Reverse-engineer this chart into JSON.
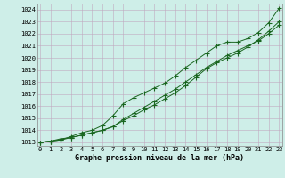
{
  "xlabel": "Graphe pression niveau de la mer (hPa)",
  "bg_color": "#ceeee8",
  "grid_color": "#c0a8c0",
  "line_color": "#1a6620",
  "xlim": [
    -0.3,
    23.3
  ],
  "ylim": [
    1012.7,
    1024.5
  ],
  "yticks": [
    1013,
    1014,
    1015,
    1016,
    1017,
    1018,
    1019,
    1020,
    1021,
    1022,
    1023,
    1024
  ],
  "xticks": [
    0,
    1,
    2,
    3,
    4,
    5,
    6,
    7,
    8,
    9,
    10,
    11,
    12,
    13,
    14,
    15,
    16,
    17,
    18,
    19,
    20,
    21,
    22,
    23
  ],
  "series1_x": [
    0,
    1,
    2,
    3,
    4,
    5,
    6,
    7,
    8,
    9,
    10,
    11,
    12,
    13,
    14,
    15,
    16,
    17,
    18,
    19,
    20,
    21,
    22,
    23
  ],
  "series1_y": [
    1013.0,
    1013.1,
    1013.3,
    1013.4,
    1013.6,
    1013.8,
    1014.0,
    1014.3,
    1014.8,
    1015.2,
    1015.7,
    1016.1,
    1016.6,
    1017.1,
    1017.7,
    1018.4,
    1019.1,
    1019.6,
    1020.0,
    1020.4,
    1020.9,
    1021.5,
    1022.2,
    1023.0
  ],
  "series2_x": [
    0,
    1,
    2,
    3,
    4,
    5,
    6,
    7,
    8,
    9,
    10,
    11,
    12,
    13,
    14,
    15,
    16,
    17,
    18,
    19,
    20,
    21,
    22,
    23
  ],
  "series2_y": [
    1013.0,
    1013.1,
    1013.2,
    1013.4,
    1013.6,
    1013.8,
    1014.0,
    1014.3,
    1014.9,
    1015.4,
    1015.9,
    1016.4,
    1016.9,
    1017.4,
    1018.0,
    1018.6,
    1019.2,
    1019.7,
    1020.2,
    1020.6,
    1021.0,
    1021.4,
    1022.0,
    1022.7
  ],
  "series3_x": [
    0,
    1,
    2,
    3,
    4,
    5,
    6,
    7,
    8,
    9,
    10,
    11,
    12,
    13,
    14,
    15,
    16,
    17,
    18,
    19,
    20,
    21,
    22,
    23
  ],
  "series3_y": [
    1013.0,
    1013.1,
    1013.2,
    1013.5,
    1013.8,
    1014.0,
    1014.4,
    1015.2,
    1016.2,
    1016.7,
    1017.1,
    1017.5,
    1017.9,
    1018.5,
    1019.2,
    1019.8,
    1020.4,
    1021.0,
    1021.3,
    1021.3,
    1021.6,
    1022.1,
    1022.9,
    1024.1
  ],
  "tick_fontsize": 5.0,
  "label_fontsize": 6.0
}
